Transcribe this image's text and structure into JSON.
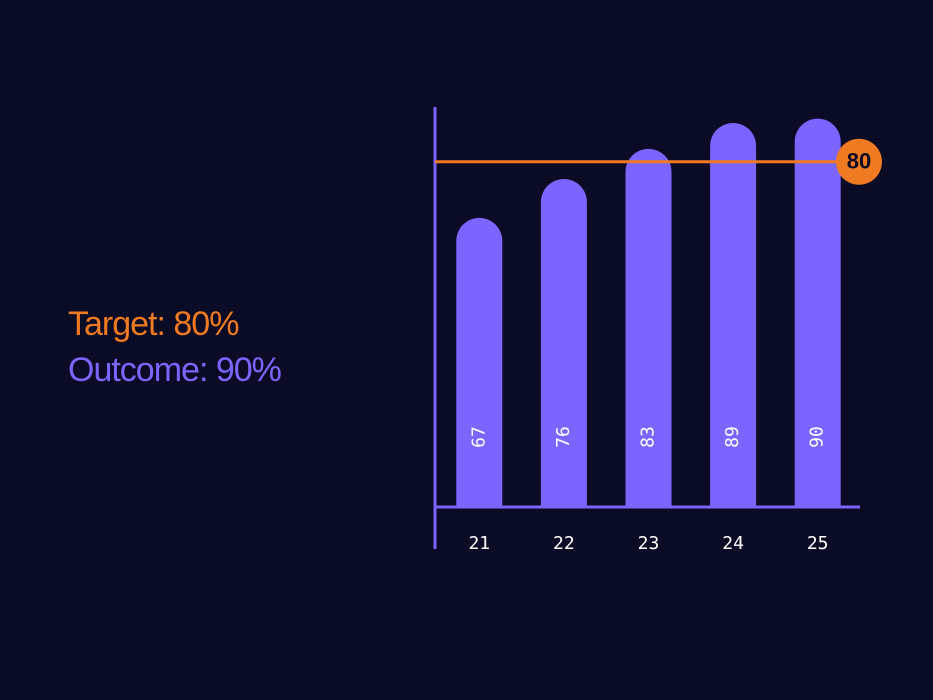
{
  "chart_data": {
    "type": "bar",
    "annotations": [
      {
        "text": "Target: 80%",
        "color": "#f07a22"
      },
      {
        "text": "Outcome: 90%",
        "color": "#7a66ff"
      }
    ],
    "categories": [
      "21",
      "22",
      "23",
      "24",
      "25"
    ],
    "values": [
      67,
      76,
      83,
      89,
      90
    ],
    "color": "#7a66ff",
    "target": 80,
    "target_color": "#f07a22",
    "ylim": [
      0,
      92
    ]
  }
}
